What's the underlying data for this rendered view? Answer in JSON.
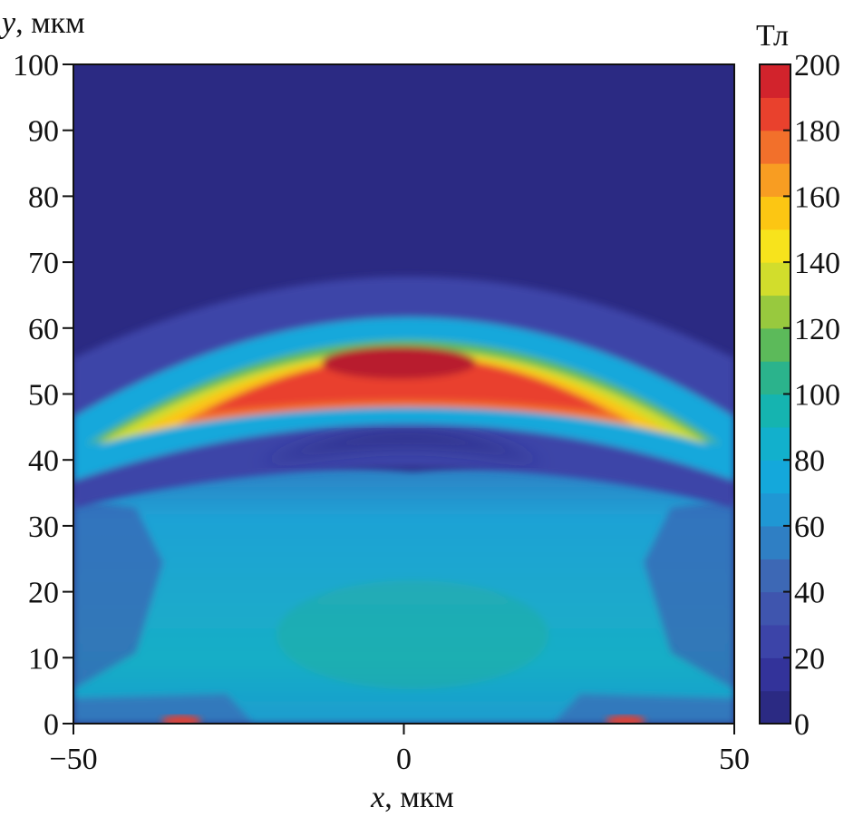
{
  "chart_data": {
    "type": "heatmap",
    "title": "",
    "x_axis": {
      "var": "x",
      "unit": ", мкм",
      "range": [
        -50,
        50
      ],
      "ticks": [
        -50,
        0,
        50
      ],
      "tick_labels": [
        "−50",
        "0",
        "50"
      ]
    },
    "y_axis": {
      "var": "y",
      "unit": ", мкм",
      "range": [
        0,
        100
      ],
      "ticks": [
        0,
        10,
        20,
        30,
        40,
        50,
        60,
        70,
        80,
        90,
        100
      ]
    },
    "colorbar": {
      "label": "Тл",
      "range": [
        0,
        200
      ],
      "ticks": [
        0,
        20,
        40,
        60,
        80,
        100,
        120,
        140,
        160,
        180,
        200
      ],
      "levels": 20,
      "colors": [
        "#2b2a83",
        "#33339a",
        "#3c44a8",
        "#3f55ae",
        "#3d68b5",
        "#2f7fc4",
        "#1f97d4",
        "#14a8db",
        "#12b0cc",
        "#15b4b0",
        "#2bb38c",
        "#5cba5a",
        "#98c93e",
        "#d2dd2c",
        "#f7e31c",
        "#fcc613",
        "#f89d22",
        "#f2702b",
        "#e9412d",
        "#d2232c"
      ]
    },
    "features": [
      {
        "name": "arc_field_band",
        "shape": "arc",
        "apex_y": 54,
        "edge_y_at_x_pm45": 43,
        "peak_value": 200,
        "description_value_range": [
          120,
          200
        ]
      },
      {
        "name": "trailing_field",
        "region_y": [
          0,
          35
        ],
        "value_approx": 70
      },
      {
        "name": "field_minimum_below_arc",
        "region_y": [
          40,
          47
        ],
        "value_approx": 15
      },
      {
        "name": "background_above",
        "region_y": [
          62,
          100
        ],
        "value_approx": 5
      },
      {
        "name": "hot_spots",
        "x": [
          -34,
          33
        ],
        "y": 0.5,
        "value_approx": 180
      }
    ]
  }
}
